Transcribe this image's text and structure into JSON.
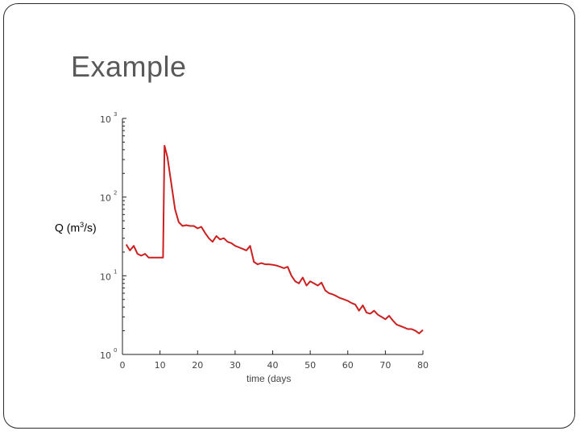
{
  "slide": {
    "title": "Example"
  },
  "chart_data": {
    "type": "line",
    "y_scale": "log",
    "xlim": [
      0,
      80
    ],
    "ylim": [
      1,
      1000
    ],
    "xticks": [
      0,
      10,
      20,
      30,
      40,
      50,
      60,
      70,
      80
    ],
    "xtick_labels": [
      "0",
      "10",
      "20",
      "30",
      "40",
      "50",
      "60",
      "70",
      "80"
    ],
    "yticks": [
      1,
      10,
      100,
      1000
    ],
    "ytick_labels": [
      {
        "base": "10",
        "exp": "0"
      },
      {
        "base": "10",
        "exp": "1"
      },
      {
        "base": "10",
        "exp": "2"
      },
      {
        "base": "10",
        "exp": "3"
      }
    ],
    "ylabel": {
      "text": "Q (m",
      "sup": "3",
      "suffix": "/s)"
    },
    "xlabel": "time (days",
    "grid": false,
    "series_color": "#cc1f1f",
    "series": [
      {
        "x": [
          1,
          2,
          3,
          4,
          5,
          6,
          7,
          8,
          9,
          10,
          10.8,
          11.2,
          12,
          13,
          14,
          15,
          16,
          17,
          18,
          19,
          20,
          21,
          22,
          23,
          24,
          25,
          26,
          27,
          28,
          29,
          30,
          31,
          32,
          33,
          34,
          35,
          36,
          37,
          38,
          39,
          40,
          41,
          42,
          43,
          44,
          45,
          46,
          47,
          48,
          49,
          50,
          51,
          52,
          53,
          54,
          55,
          56,
          57,
          58,
          59,
          60,
          61,
          62,
          63,
          64,
          65,
          66,
          67,
          68,
          69,
          70,
          71,
          72,
          73,
          74,
          75,
          76,
          77,
          78,
          79,
          80
        ],
        "y": [
          25,
          21,
          24,
          19,
          18,
          19,
          17,
          17,
          17,
          17,
          17,
          450,
          320,
          150,
          70,
          48,
          43,
          44,
          43,
          43,
          40,
          42,
          35,
          30,
          27,
          32,
          29,
          30,
          27,
          26,
          24,
          23,
          22,
          21,
          24,
          15,
          14,
          14.5,
          14,
          14,
          13.8,
          13.5,
          13,
          12.5,
          13,
          10,
          8.5,
          8,
          9.5,
          7.5,
          8.5,
          8,
          7.5,
          8.2,
          6.5,
          6,
          5.8,
          5.5,
          5.2,
          5,
          4.8,
          4.5,
          4.3,
          3.6,
          4.2,
          3.4,
          3.3,
          3.6,
          3.2,
          3.0,
          2.8,
          3.1,
          2.7,
          2.4,
          2.3,
          2.2,
          2.1,
          2.1,
          2.0,
          1.85,
          2.05
        ]
      }
    ]
  }
}
